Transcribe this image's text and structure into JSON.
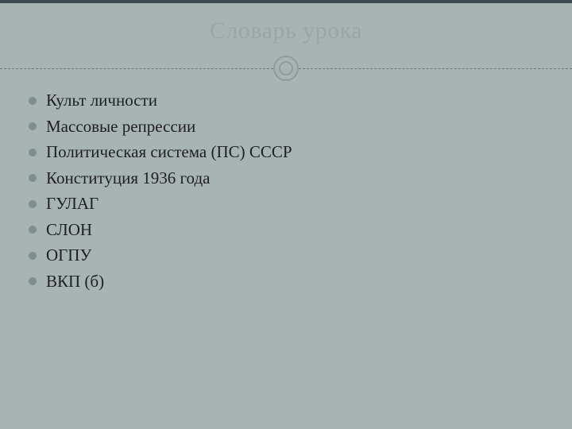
{
  "title": "Словарь урока",
  "items": [
    "Культ личности",
    "Массовые репрессии",
    "Политическая система (ПС) СССР",
    "Конституция 1936 года",
    "ГУЛАГ",
    "СЛОН",
    "ОГПУ",
    "ВКП (б)"
  ],
  "style": {
    "top_border_color": "#3a4a4f",
    "background_color": "#a8b4b4",
    "title_color": "#9aa5a5",
    "title_fontsize": 30,
    "divider_line_color": "#6b7b7b",
    "divider_circle_border_color": "#8e9c9c",
    "divider_circle_bg": "#a8b4b4",
    "bullet_color": "#7e8d8d",
    "item_text_color": "#1f1f1f",
    "item_fontsize": 21,
    "item_line_height": 1.55
  }
}
